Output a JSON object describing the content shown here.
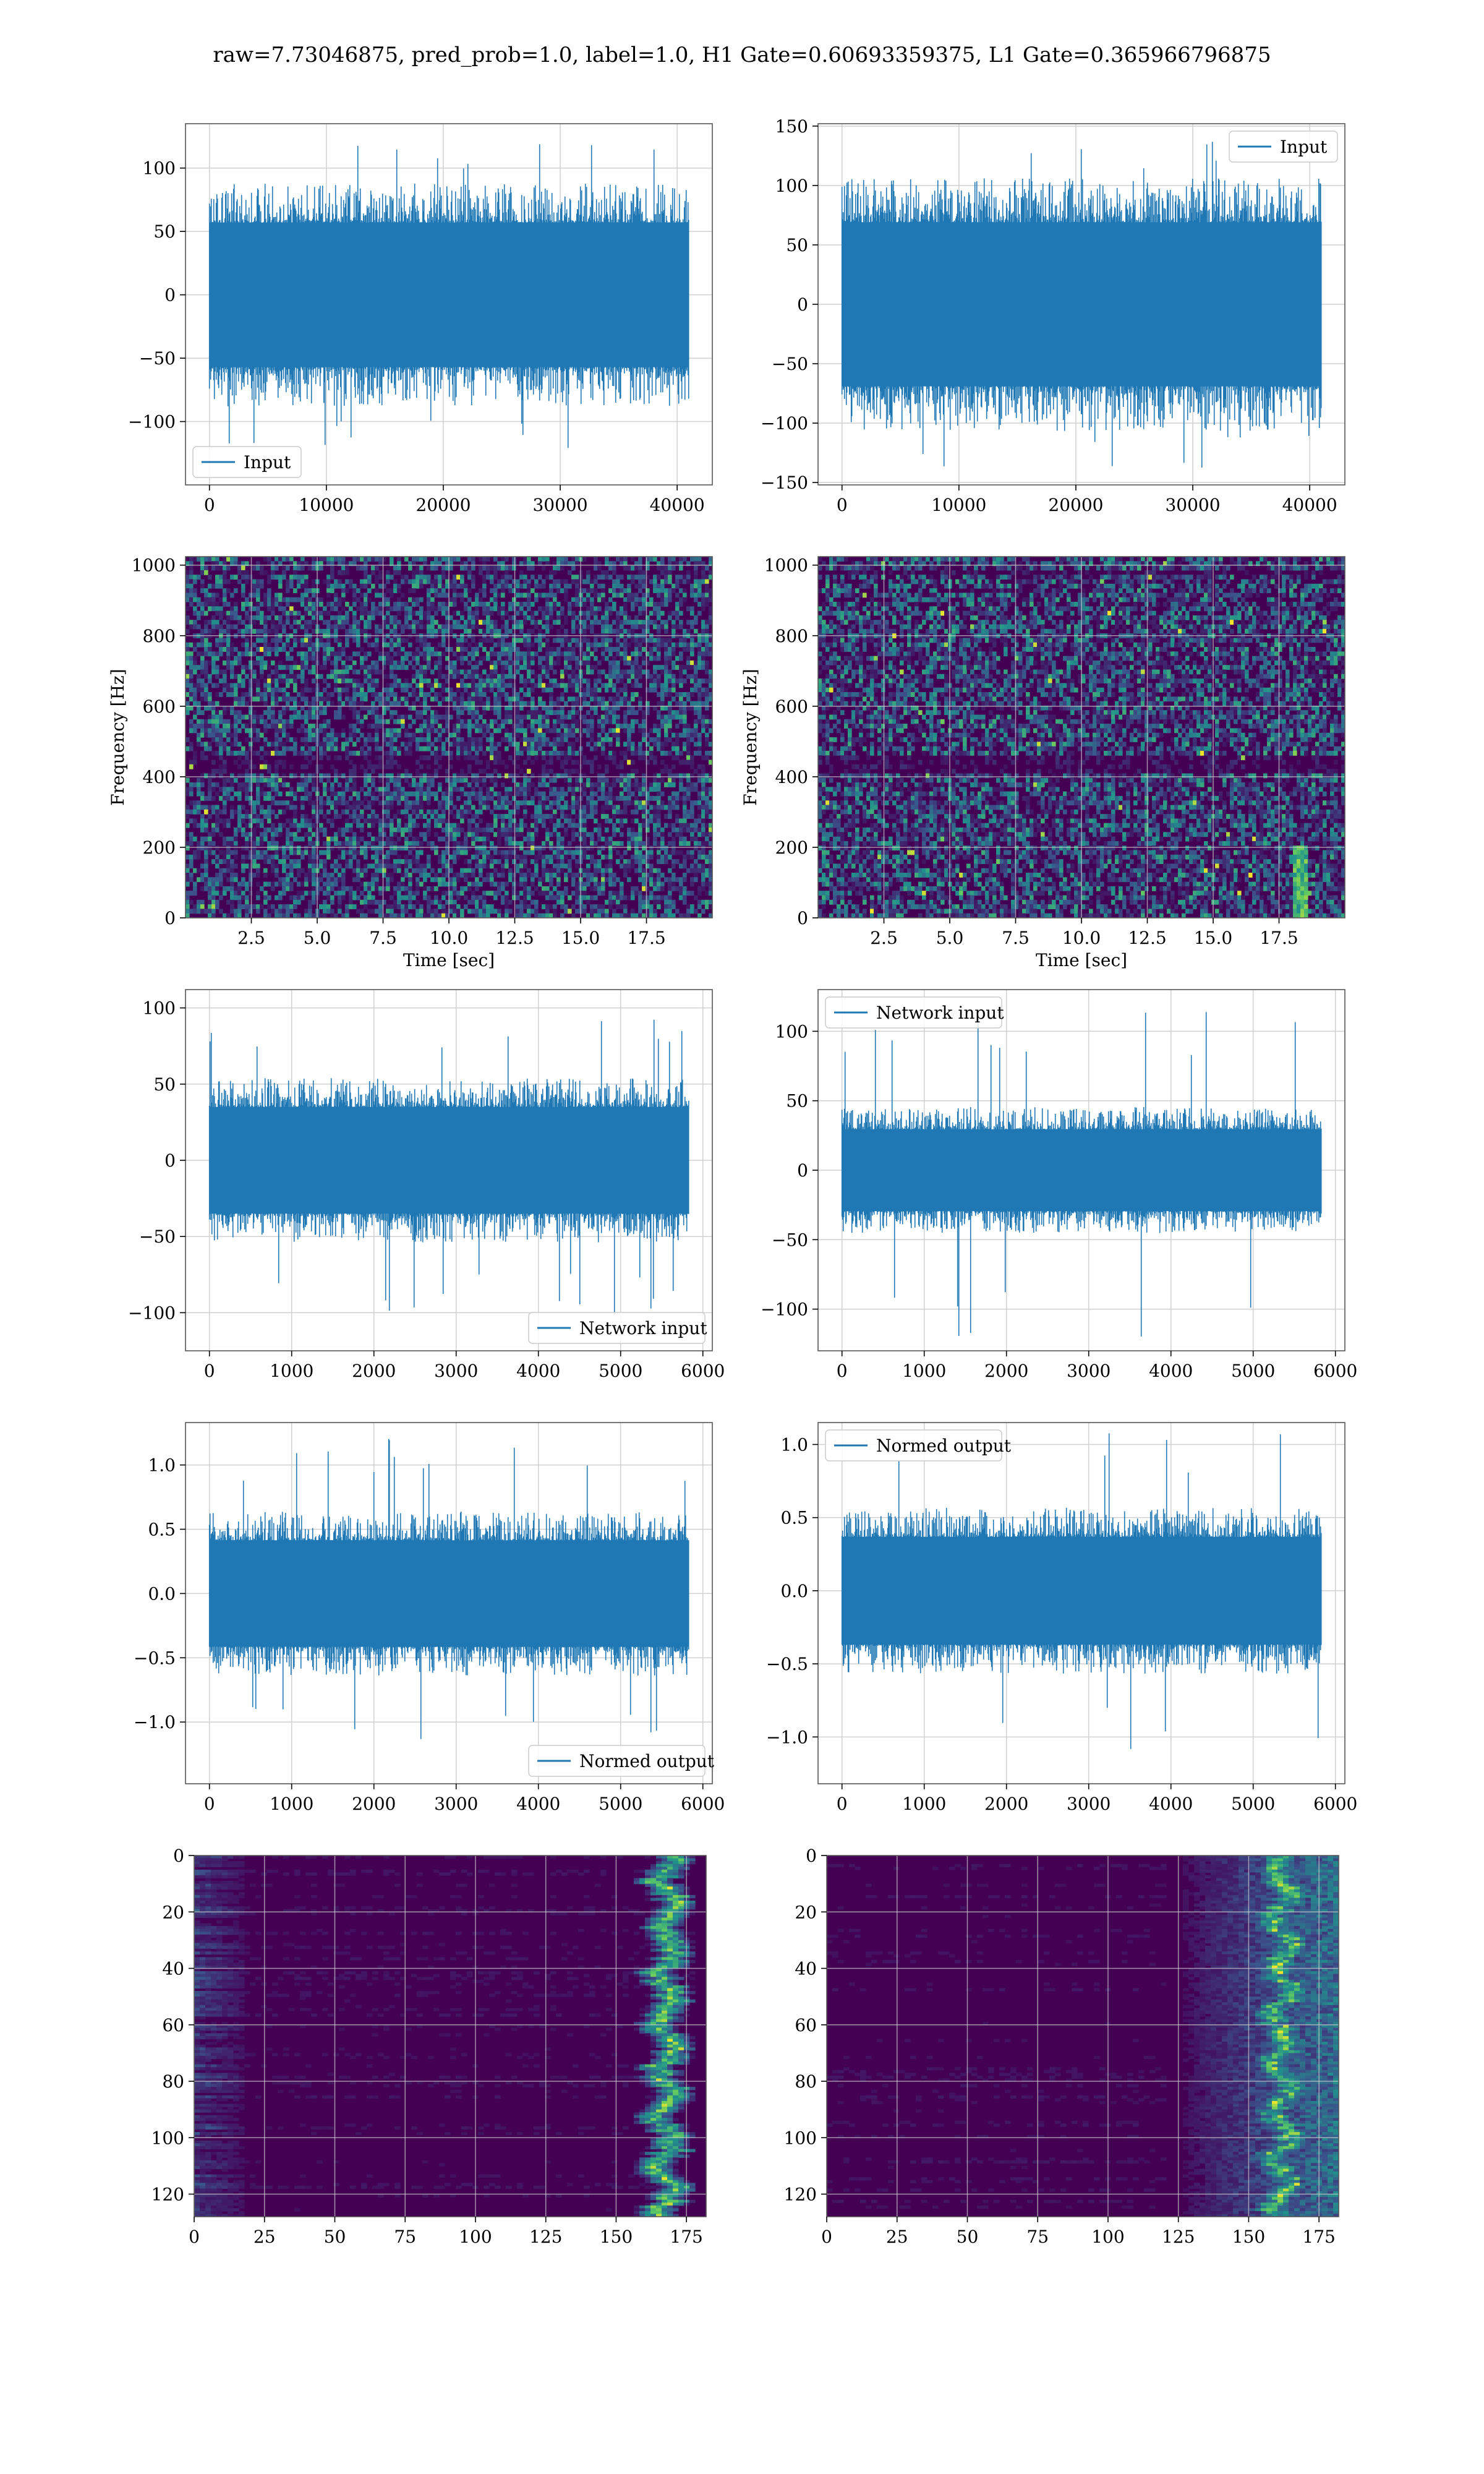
{
  "figure": {
    "title": "raw=7.73046875, pred_prob=1.0, label=1.0, H1 Gate=0.60693359375, L1 Gate=0.365966796875"
  },
  "colors": {
    "line": "#1f77b4",
    "grid": "#d0d0d0",
    "viridis_dark": "#440154",
    "viridis_mid": "#3b528b",
    "viridis_teal": "#21918c",
    "viridis_green": "#5ec962",
    "viridis_yellow": "#fde725"
  },
  "chart_data": [
    {
      "type": "line",
      "panel": "row1-left",
      "series": [
        {
          "name": "Input",
          "amplitude_core": 62,
          "amplitude_peak": 123,
          "n_points": 40960
        }
      ],
      "xlim": [
        -2048,
        43008
      ],
      "ylim": [
        -150,
        135
      ],
      "xticks": [
        0,
        10000,
        20000,
        30000,
        40000
      ],
      "yticks": [
        -100,
        -50,
        0,
        50,
        100
      ],
      "xlabel": "",
      "ylabel": "",
      "legend": "lower-left",
      "grid": true
    },
    {
      "type": "line",
      "panel": "row1-right",
      "series": [
        {
          "name": "Input",
          "amplitude_core": 75,
          "amplitude_peak": 138,
          "n_points": 40960
        }
      ],
      "xlim": [
        -2048,
        43008
      ],
      "ylim": [
        -152,
        152
      ],
      "xticks": [
        0,
        10000,
        20000,
        30000,
        40000
      ],
      "yticks": [
        -150,
        -100,
        -50,
        0,
        50,
        100,
        150
      ],
      "xlabel": "",
      "ylabel": "",
      "legend": "upper-right",
      "grid": true
    },
    {
      "type": "heatmap",
      "panel": "row2-left",
      "xlim": [
        0,
        20
      ],
      "ylim": [
        0,
        1024
      ],
      "xticks": [
        2.5,
        5.0,
        7.5,
        10.0,
        12.5,
        15.0,
        17.5
      ],
      "yticks": [
        0,
        200,
        400,
        600,
        800,
        1000
      ],
      "xlabel": "Time [sec]",
      "ylabel": "Frequency [Hz]",
      "grid": true,
      "colormap": "viridis"
    },
    {
      "type": "heatmap",
      "panel": "row2-right",
      "xlim": [
        0,
        20
      ],
      "ylim": [
        0,
        1024
      ],
      "xticks": [
        2.5,
        5.0,
        7.5,
        10.0,
        12.5,
        15.0,
        17.5
      ],
      "yticks": [
        0,
        200,
        400,
        600,
        800,
        1000
      ],
      "xlabel": "Time [sec]",
      "ylabel": "Frequency [Hz]",
      "grid": true,
      "colormap": "viridis"
    },
    {
      "type": "line",
      "panel": "row3-left",
      "series": [
        {
          "name": "Network input",
          "amplitude_core": 38,
          "amplitude_peak": 102,
          "n_points": 5824
        }
      ],
      "xlim": [
        -291,
        6115
      ],
      "ylim": [
        -125,
        112
      ],
      "xticks": [
        0,
        1000,
        2000,
        3000,
        4000,
        5000,
        6000
      ],
      "yticks": [
        -100,
        -50,
        0,
        50,
        100
      ],
      "xlabel": "",
      "ylabel": "",
      "legend": "lower-right",
      "grid": true
    },
    {
      "type": "line",
      "panel": "row3-right",
      "series": [
        {
          "name": "Network input",
          "amplitude_core": 32,
          "amplitude_peak": 120,
          "n_points": 5824
        }
      ],
      "xlim": [
        -291,
        6115
      ],
      "ylim": [
        -130,
        130
      ],
      "xticks": [
        0,
        1000,
        2000,
        3000,
        4000,
        5000,
        6000
      ],
      "yticks": [
        -100,
        -50,
        0,
        50,
        100
      ],
      "xlabel": "",
      "ylabel": "",
      "legend": "upper-left",
      "grid": true
    },
    {
      "type": "line",
      "panel": "row4-left",
      "series": [
        {
          "name": "Normed output",
          "amplitude_core": 0.45,
          "amplitude_peak": 1.22,
          "n_points": 5824
        }
      ],
      "xlim": [
        -291,
        6115
      ],
      "ylim": [
        -1.48,
        1.33
      ],
      "xticks": [
        0,
        1000,
        2000,
        3000,
        4000,
        5000,
        6000
      ],
      "yticks": [
        -1.0,
        -0.5,
        0.0,
        0.5,
        1.0
      ],
      "xlabel": "",
      "ylabel": "",
      "legend": "lower-right",
      "grid": true
    },
    {
      "type": "line",
      "panel": "row4-right",
      "series": [
        {
          "name": "Normed output",
          "amplitude_core": 0.4,
          "amplitude_peak": 1.12,
          "n_points": 5824
        }
      ],
      "xlim": [
        -291,
        6115
      ],
      "ylim": [
        -1.32,
        1.15
      ],
      "xticks": [
        0,
        1000,
        2000,
        3000,
        4000,
        5000,
        6000
      ],
      "yticks": [
        -1.0,
        -0.5,
        0.0,
        0.5,
        1.0
      ],
      "xlabel": "",
      "ylabel": "",
      "legend": "upper-left",
      "grid": true
    },
    {
      "type": "heatmap",
      "panel": "row5-left",
      "xlim": [
        0,
        182
      ],
      "ylim": [
        128,
        0
      ],
      "xticks": [
        0,
        25,
        50,
        75,
        100,
        125,
        150,
        175
      ],
      "yticks": [
        0,
        20,
        40,
        60,
        80,
        100,
        120
      ],
      "xlabel": "",
      "ylabel": "",
      "grid": true,
      "colormap": "viridis"
    },
    {
      "type": "heatmap",
      "panel": "row5-right",
      "xlim": [
        0,
        182
      ],
      "ylim": [
        128,
        0
      ],
      "xticks": [
        0,
        25,
        50,
        75,
        100,
        125,
        150,
        175
      ],
      "yticks": [
        0,
        20,
        40,
        60,
        80,
        100,
        120
      ],
      "xlabel": "",
      "ylabel": "",
      "grid": true,
      "colormap": "viridis"
    }
  ]
}
